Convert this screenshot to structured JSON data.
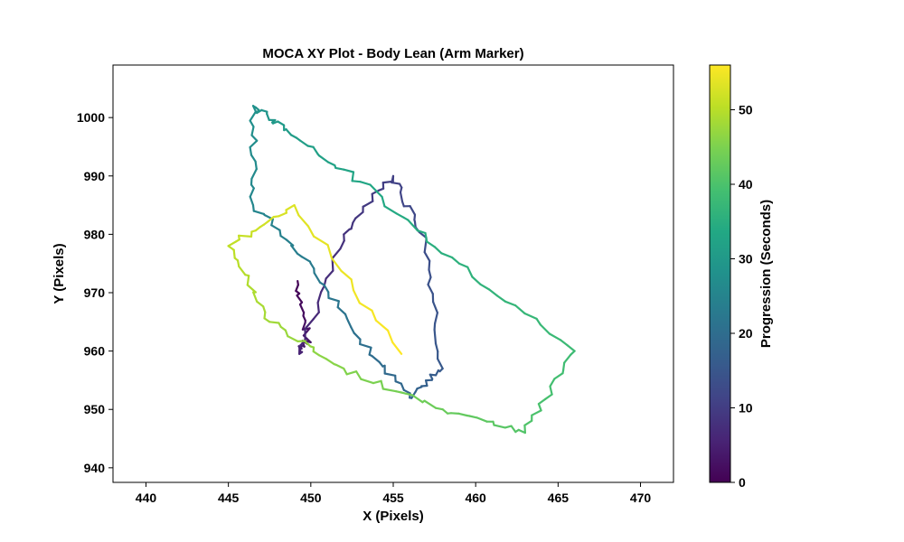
{
  "chart_data": {
    "type": "line",
    "title": "MOCA XY Plot - Body Lean (Arm Marker)",
    "xlabel": "X (Pixels)",
    "ylabel": "Y (Pixels)",
    "xlim": [
      438,
      472
    ],
    "ylim": [
      937.5,
      1009
    ],
    "x_ticks": [
      440,
      445,
      450,
      455,
      460,
      465,
      470
    ],
    "y_ticks": [
      940,
      950,
      960,
      970,
      980,
      990,
      1000
    ],
    "grid": false,
    "colorbar": {
      "label": "Progression (Seconds)",
      "range": [
        0,
        56
      ],
      "ticks": [
        0,
        10,
        20,
        30,
        40,
        50
      ],
      "colormap": "viridis"
    },
    "series": [
      {
        "t": [
          0,
          3,
          5.5,
          8,
          10.5,
          13,
          15.5,
          18,
          20.5,
          23,
          25.5,
          28,
          30.5,
          33,
          35.5,
          38,
          40.5,
          43,
          45.5,
          48,
          50.5,
          53,
          56
        ],
        "x": [
          449.2,
          449.8,
          449.3,
          452.0,
          455.0,
          457.0,
          458.0,
          456.0,
          453.0,
          450.0,
          446.5,
          446.5,
          448.5,
          453.0,
          459.0,
          466.0,
          463.0,
          458.0,
          452.0,
          447.5,
          445.0,
          449.0,
          455.5
        ],
        "y": [
          972.0,
          962.0,
          959.5,
          980.0,
          990.0,
          979.0,
          957.0,
          952.0,
          962.0,
          975.0,
          985.0,
          1002.0,
          998.0,
          989.0,
          975.0,
          960.0,
          946.0,
          950.0,
          957.0,
          965.0,
          978.0,
          985.0,
          959.5
        ]
      }
    ]
  }
}
